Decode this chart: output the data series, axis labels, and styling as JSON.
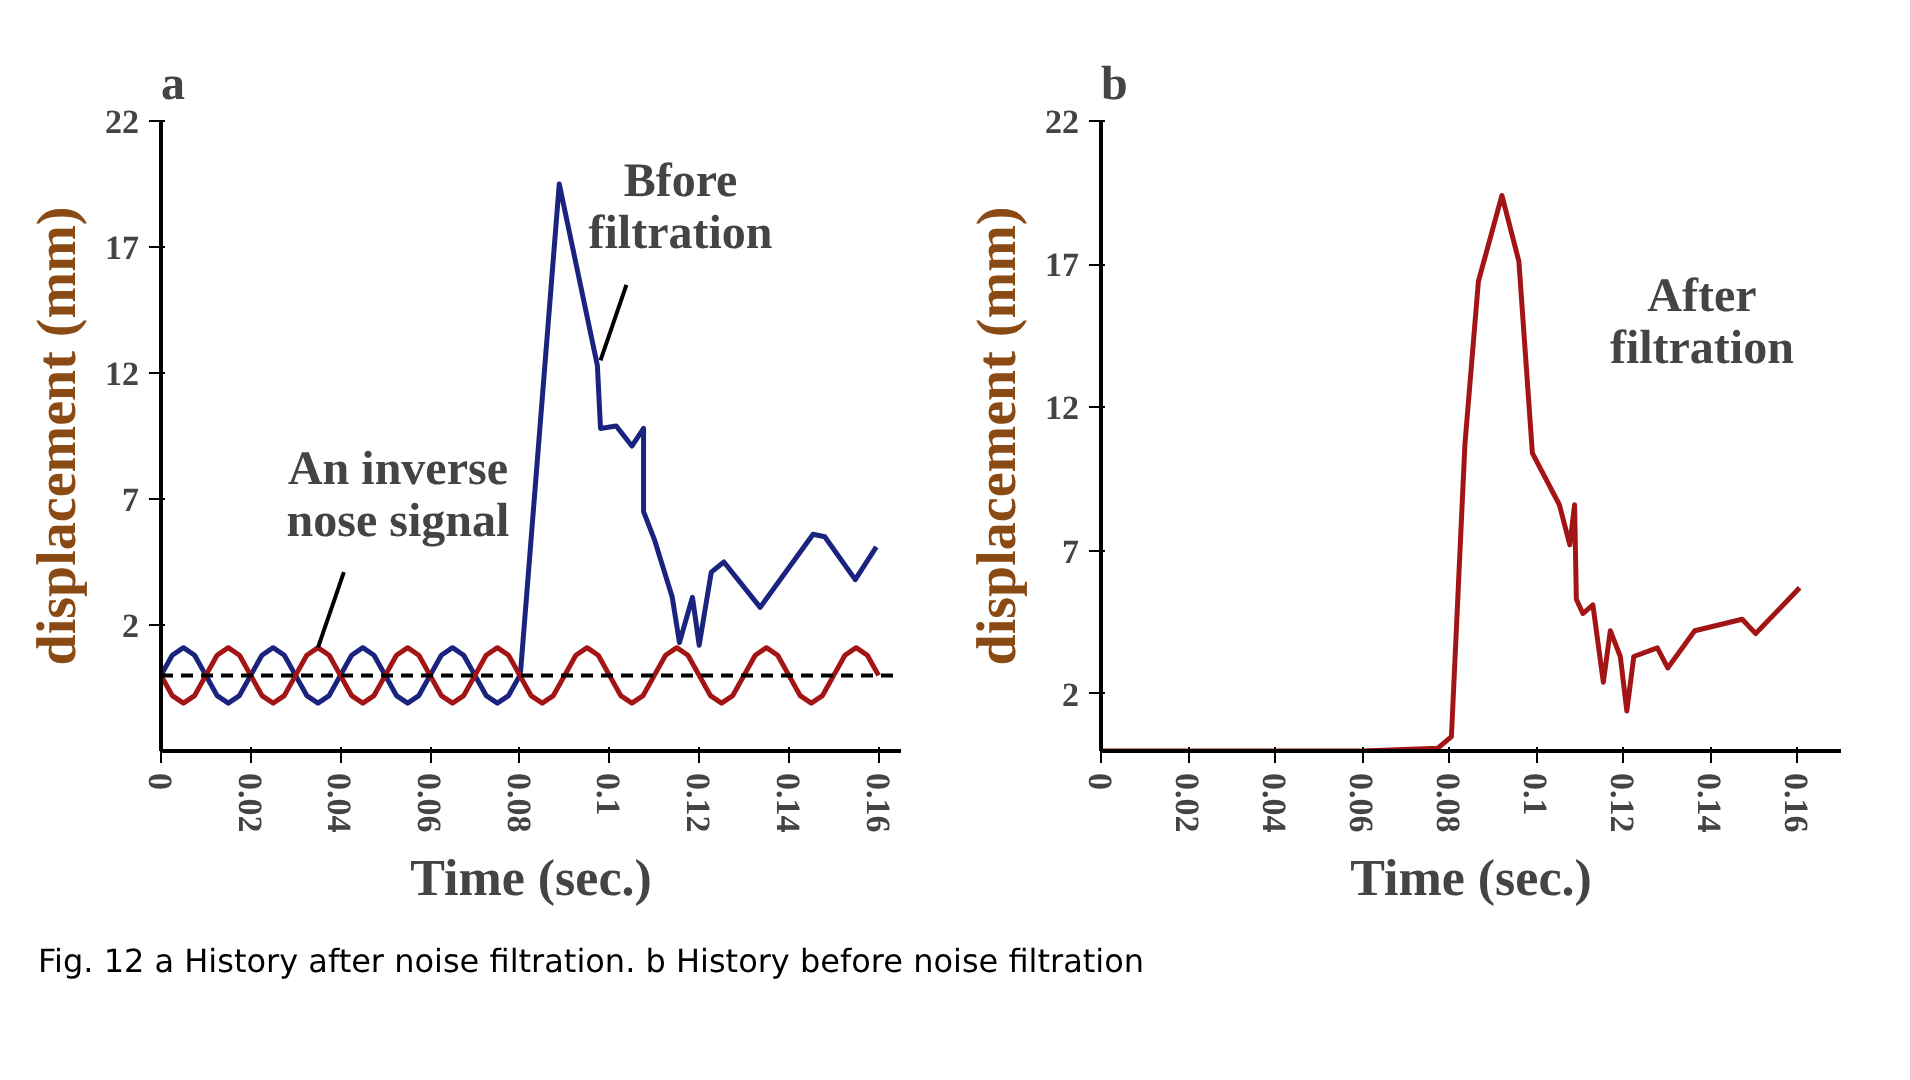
{
  "chart_data": [
    {
      "type": "line",
      "title": "a",
      "xlabel": "Time (sec.)",
      "ylabel": "displacement (mm)",
      "xlim": [
        0,
        0.165
      ],
      "ylim": [
        -3,
        22
      ],
      "xticks": [
        0,
        0.02,
        0.04,
        0.06,
        0.08,
        0.1,
        0.12,
        0.14,
        0.16
      ],
      "yticks": [
        2,
        7,
        12,
        17,
        22
      ],
      "grid": false,
      "ref_lines": [
        {
          "axis": "y",
          "value": 0,
          "color": "#000000",
          "line_style": "dashed"
        }
      ],
      "series": [
        {
          "color": "#1a237e",
          "x": [
            0,
            0.0025,
            0.005,
            0.0075,
            0.01,
            0.0125,
            0.015,
            0.0175,
            0.02,
            0.0225,
            0.025,
            0.0275,
            0.03,
            0.0325,
            0.035,
            0.0375,
            0.04,
            0.0425,
            0.045,
            0.0475,
            0.05,
            0.0525,
            0.055,
            0.0575,
            0.06,
            0.0625,
            0.065,
            0.0675,
            0.07,
            0.0725,
            0.075,
            0.0775,
            0.08,
            0.0802,
            0.0888,
            0.0973,
            0.098,
            0.1015,
            0.105,
            0.1076,
            0.1076,
            0.11,
            0.114,
            0.1156,
            0.1185,
            0.12,
            0.1227,
            0.1255,
            0.1336,
            0.1454,
            0.148,
            0.1548,
            0.1595
          ],
          "values": [
            0,
            0.8,
            1.1,
            0.8,
            0,
            -0.8,
            -1.1,
            -0.8,
            0,
            0.8,
            1.1,
            0.8,
            0,
            -0.8,
            -1.1,
            -0.8,
            0,
            0.8,
            1.1,
            0.8,
            0,
            -0.8,
            -1.1,
            -0.8,
            0,
            0.8,
            1.1,
            0.8,
            0,
            -0.8,
            -1.1,
            -0.8,
            0,
            0.2,
            19.5,
            12.3,
            9.8,
            9.9,
            9.1,
            9.8,
            6.5,
            5.4,
            3.1,
            1.3,
            3.1,
            1.2,
            4.1,
            4.5,
            2.7,
            5.6,
            5.5,
            3.8,
            5.1
          ]
        },
        {
          "color": "#a31515",
          "x": [
            0,
            0.0025,
            0.005,
            0.0075,
            0.01,
            0.0125,
            0.015,
            0.0175,
            0.02,
            0.0225,
            0.025,
            0.0275,
            0.03,
            0.0325,
            0.035,
            0.0375,
            0.04,
            0.0425,
            0.045,
            0.0475,
            0.05,
            0.0525,
            0.055,
            0.0575,
            0.06,
            0.0625,
            0.065,
            0.0675,
            0.07,
            0.0725,
            0.075,
            0.0775,
            0.08,
            0.0825,
            0.085,
            0.0875,
            0.09,
            0.0925,
            0.095,
            0.0975,
            0.1,
            0.1025,
            0.105,
            0.1075,
            0.11,
            0.1125,
            0.115,
            0.1175,
            0.12,
            0.1225,
            0.125,
            0.1275,
            0.13,
            0.1325,
            0.135,
            0.1375,
            0.14,
            0.1425,
            0.145,
            0.1475,
            0.15,
            0.1525,
            0.155,
            0.1575,
            0.16
          ],
          "values": [
            0,
            -0.8,
            -1.1,
            -0.8,
            0,
            0.8,
            1.1,
            0.8,
            0,
            -0.8,
            -1.1,
            -0.8,
            0,
            0.8,
            1.1,
            0.8,
            0,
            -0.8,
            -1.1,
            -0.8,
            0,
            0.8,
            1.1,
            0.8,
            0,
            -0.8,
            -1.1,
            -0.8,
            0,
            0.8,
            1.1,
            0.8,
            0,
            -0.8,
            -1.1,
            -0.8,
            0,
            0.8,
            1.1,
            0.8,
            0,
            -0.8,
            -1.1,
            -0.8,
            0,
            0.8,
            1.1,
            0.8,
            0,
            -0.8,
            -1.1,
            -0.8,
            0,
            0.8,
            1.1,
            0.8,
            0,
            -0.8,
            -1.1,
            -0.8,
            0,
            0.8,
            1.1,
            0.8,
            0
          ]
        }
      ],
      "annotations": [
        {
          "text": "Bfore filtration",
          "x": 0.098,
          "y": 12.5
        },
        {
          "text": "An inverse nose signal",
          "x": 0.035,
          "y": 1.1
        },
        "Fig. 12  a History after noise filtration. b History before noise filtration"
      ]
    },
    {
      "type": "line",
      "title": "b",
      "xlabel": "Time (sec.)",
      "ylabel": "displacement (mm)",
      "xlim": [
        0,
        0.17
      ],
      "ylim": [
        0,
        22
      ],
      "xticks": [
        0,
        0.02,
        0.04,
        0.06,
        0.08,
        0.1,
        0.12,
        0.14,
        0.16
      ],
      "yticks": [
        2,
        7,
        12,
        17,
        22
      ],
      "grid": false,
      "series": [
        {
          "name": "After filtration",
          "color": "#a31515",
          "x": [
            0,
            0.02,
            0.04,
            0.06,
            0.0774,
            0.0805,
            0.0836,
            0.0867,
            0.0921,
            0.096,
            0.0991,
            0.1053,
            0.1077,
            0.1088,
            0.1092,
            0.1107,
            0.113,
            0.1154,
            0.117,
            0.1193,
            0.1208,
            0.1224,
            0.1278,
            0.1302,
            0.1364,
            0.1473,
            0.1504,
            0.1605
          ],
          "values": [
            0,
            0,
            0,
            0,
            0.1,
            0.5,
            10.7,
            16.4,
            19.4,
            17.1,
            10.4,
            8.6,
            7.2,
            8.6,
            5.3,
            4.8,
            5.1,
            2.4,
            4.2,
            3.3,
            1.4,
            3.3,
            3.6,
            2.9,
            4.2,
            4.6,
            4.1,
            5.7
          ]
        }
      ]
    }
  ]
}
